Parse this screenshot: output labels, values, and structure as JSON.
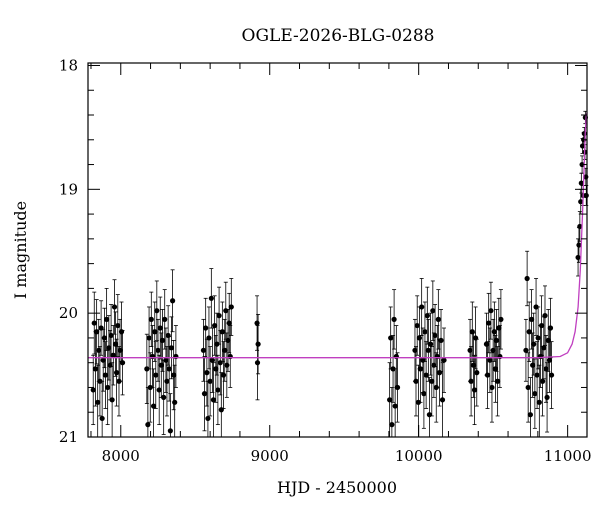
{
  "chart_data": {
    "type": "scatter",
    "title": "OGLE-2026-BLG-0288",
    "xlabel": "HJD - 2450000",
    "ylabel": "I magnitude",
    "xlim": [
      7780,
      11130
    ],
    "ylim": [
      21.0,
      17.98
    ],
    "y_inverted": true,
    "xticks": [
      8000,
      9000,
      10000,
      11000
    ],
    "yticks": [
      18,
      19,
      20,
      21
    ],
    "colors": {
      "data": "#000000",
      "model": "#c03fc0"
    },
    "model": {
      "name": "",
      "baseline_mag": 20.36,
      "x": [
        7780,
        9000,
        10000,
        10800,
        10950,
        11000,
        11030,
        11050,
        11070,
        11085,
        11100,
        11110,
        11118,
        11125,
        11130
      ],
      "y": [
        20.36,
        20.36,
        20.36,
        20.36,
        20.35,
        20.32,
        20.25,
        20.15,
        19.95,
        19.65,
        19.2,
        18.85,
        18.55,
        18.4,
        18.38
      ]
    },
    "series": [
      {
        "name": "",
        "points": [
          {
            "x": 7815,
            "y": 20.62,
            "err": 0.28
          },
          {
            "x": 7822,
            "y": 20.08,
            "err": 0.25
          },
          {
            "x": 7830,
            "y": 20.45,
            "err": 0.3
          },
          {
            "x": 7838,
            "y": 20.15,
            "err": 0.26
          },
          {
            "x": 7845,
            "y": 20.72,
            "err": 0.3
          },
          {
            "x": 7852,
            "y": 20.3,
            "err": 0.25
          },
          {
            "x": 7860,
            "y": 20.55,
            "err": 0.28
          },
          {
            "x": 7868,
            "y": 20.12,
            "err": 0.22
          },
          {
            "x": 7875,
            "y": 20.85,
            "err": 0.3
          },
          {
            "x": 7882,
            "y": 20.38,
            "err": 0.25
          },
          {
            "x": 7890,
            "y": 20.2,
            "err": 0.24
          },
          {
            "x": 7897,
            "y": 20.5,
            "err": 0.27
          },
          {
            "x": 7905,
            "y": 20.05,
            "err": 0.25
          },
          {
            "x": 7912,
            "y": 20.6,
            "err": 0.3
          },
          {
            "x": 7920,
            "y": 20.28,
            "err": 0.26
          },
          {
            "x": 7928,
            "y": 20.42,
            "err": 0.28
          },
          {
            "x": 7935,
            "y": 20.18,
            "err": 0.25
          },
          {
            "x": 7942,
            "y": 20.7,
            "err": 0.3
          },
          {
            "x": 7950,
            "y": 20.34,
            "err": 0.24
          },
          {
            "x": 7958,
            "y": 19.95,
            "err": 0.22
          },
          {
            "x": 7965,
            "y": 20.25,
            "err": 0.26
          },
          {
            "x": 7972,
            "y": 20.48,
            "err": 0.27
          },
          {
            "x": 7980,
            "y": 20.1,
            "err": 0.25
          },
          {
            "x": 7988,
            "y": 20.55,
            "err": 0.28
          },
          {
            "x": 7995,
            "y": 20.3,
            "err": 0.25
          },
          {
            "x": 8005,
            "y": 20.15,
            "err": 0.24
          },
          {
            "x": 8012,
            "y": 20.4,
            "err": 0.26
          },
          {
            "x": 8175,
            "y": 20.45,
            "err": 0.28
          },
          {
            "x": 8182,
            "y": 20.9,
            "err": 0.3
          },
          {
            "x": 8190,
            "y": 20.2,
            "err": 0.25
          },
          {
            "x": 8198,
            "y": 20.6,
            "err": 0.28
          },
          {
            "x": 8205,
            "y": 20.05,
            "err": 0.22
          },
          {
            "x": 8213,
            "y": 20.35,
            "err": 0.25
          },
          {
            "x": 8220,
            "y": 20.75,
            "err": 0.3
          },
          {
            "x": 8228,
            "y": 20.15,
            "err": 0.24
          },
          {
            "x": 8235,
            "y": 20.5,
            "err": 0.27
          },
          {
            "x": 8242,
            "y": 19.98,
            "err": 0.24
          },
          {
            "x": 8250,
            "y": 20.3,
            "err": 0.25
          },
          {
            "x": 8258,
            "y": 20.62,
            "err": 0.28
          },
          {
            "x": 8265,
            "y": 20.12,
            "err": 0.25
          },
          {
            "x": 8272,
            "y": 20.42,
            "err": 0.26
          },
          {
            "x": 8280,
            "y": 20.22,
            "err": 0.25
          },
          {
            "x": 8288,
            "y": 20.68,
            "err": 0.3
          },
          {
            "x": 8295,
            "y": 20.05,
            "err": 0.24
          },
          {
            "x": 8303,
            "y": 20.38,
            "err": 0.26
          },
          {
            "x": 8310,
            "y": 20.55,
            "err": 0.28
          },
          {
            "x": 8318,
            "y": 20.18,
            "err": 0.24
          },
          {
            "x": 8325,
            "y": 20.45,
            "err": 0.26
          },
          {
            "x": 8333,
            "y": 20.95,
            "err": 0.3
          },
          {
            "x": 8340,
            "y": 20.28,
            "err": 0.25
          },
          {
            "x": 8348,
            "y": 19.9,
            "err": 0.25
          },
          {
            "x": 8355,
            "y": 20.5,
            "err": 0.28
          },
          {
            "x": 8362,
            "y": 20.72,
            "err": 0.3
          },
          {
            "x": 8370,
            "y": 20.35,
            "err": 0.25
          },
          {
            "x": 8555,
            "y": 20.3,
            "err": 0.25
          },
          {
            "x": 8562,
            "y": 20.65,
            "err": 0.3
          },
          {
            "x": 8570,
            "y": 20.12,
            "err": 0.24
          },
          {
            "x": 8578,
            "y": 20.48,
            "err": 0.27
          },
          {
            "x": 8585,
            "y": 20.85,
            "err": 0.3
          },
          {
            "x": 8592,
            "y": 20.2,
            "err": 0.25
          },
          {
            "x": 8600,
            "y": 20.55,
            "err": 0.28
          },
          {
            "x": 8608,
            "y": 19.88,
            "err": 0.24
          },
          {
            "x": 8615,
            "y": 20.38,
            "err": 0.26
          },
          {
            "x": 8622,
            "y": 20.7,
            "err": 0.3
          },
          {
            "x": 8630,
            "y": 20.1,
            "err": 0.24
          },
          {
            "x": 8638,
            "y": 20.45,
            "err": 0.27
          },
          {
            "x": 8645,
            "y": 20.25,
            "err": 0.25
          },
          {
            "x": 8652,
            "y": 20.62,
            "err": 0.28
          },
          {
            "x": 8660,
            "y": 20.02,
            "err": 0.23
          },
          {
            "x": 8668,
            "y": 20.4,
            "err": 0.26
          },
          {
            "x": 8675,
            "y": 20.78,
            "err": 0.3
          },
          {
            "x": 8682,
            "y": 20.15,
            "err": 0.24
          },
          {
            "x": 8690,
            "y": 20.5,
            "err": 0.27
          },
          {
            "x": 8698,
            "y": 20.3,
            "err": 0.25
          },
          {
            "x": 8705,
            "y": 19.98,
            "err": 0.23
          },
          {
            "x": 8712,
            "y": 20.42,
            "err": 0.26
          },
          {
            "x": 8720,
            "y": 20.22,
            "err": 0.25
          },
          {
            "x": 8728,
            "y": 20.08,
            "err": 0.24
          },
          {
            "x": 8735,
            "y": 20.35,
            "err": 0.25
          },
          {
            "x": 8742,
            "y": 19.95,
            "err": 0.23
          },
          {
            "x": 8915,
            "y": 20.08,
            "err": 0.22
          },
          {
            "x": 8918,
            "y": 20.4,
            "err": 0.3
          },
          {
            "x": 8922,
            "y": 20.25,
            "err": 0.24
          },
          {
            "x": 9805,
            "y": 20.7,
            "err": 0.3
          },
          {
            "x": 9812,
            "y": 20.2,
            "err": 0.25
          },
          {
            "x": 9820,
            "y": 20.9,
            "err": 0.3
          },
          {
            "x": 9828,
            "y": 20.45,
            "err": 0.27
          },
          {
            "x": 9835,
            "y": 20.05,
            "err": 0.24
          },
          {
            "x": 9842,
            "y": 20.75,
            "err": 0.3
          },
          {
            "x": 9850,
            "y": 20.35,
            "err": 0.25
          },
          {
            "x": 9858,
            "y": 20.6,
            "err": 0.28
          },
          {
            "x": 9975,
            "y": 20.3,
            "err": 0.25
          },
          {
            "x": 9982,
            "y": 20.55,
            "err": 0.28
          },
          {
            "x": 9990,
            "y": 20.1,
            "err": 0.24
          },
          {
            "x": 9998,
            "y": 20.72,
            "err": 0.3
          },
          {
            "x": 10005,
            "y": 20.2,
            "err": 0.25
          },
          {
            "x": 10012,
            "y": 20.45,
            "err": 0.27
          },
          {
            "x": 10020,
            "y": 19.95,
            "err": 0.23
          },
          {
            "x": 10028,
            "y": 20.38,
            "err": 0.26
          },
          {
            "x": 10035,
            "y": 20.65,
            "err": 0.28
          },
          {
            "x": 10042,
            "y": 20.15,
            "err": 0.24
          },
          {
            "x": 10050,
            "y": 20.5,
            "err": 0.27
          },
          {
            "x": 10058,
            "y": 20.02,
            "err": 0.23
          },
          {
            "x": 10065,
            "y": 20.3,
            "err": 0.25
          },
          {
            "x": 10072,
            "y": 20.82,
            "err": 0.3
          },
          {
            "x": 10080,
            "y": 20.25,
            "err": 0.25
          },
          {
            "x": 10088,
            "y": 20.55,
            "err": 0.28
          },
          {
            "x": 10095,
            "y": 19.98,
            "err": 0.24
          },
          {
            "x": 10102,
            "y": 20.42,
            "err": 0.26
          },
          {
            "x": 10110,
            "y": 20.18,
            "err": 0.25
          },
          {
            "x": 10118,
            "y": 20.6,
            "err": 0.28
          },
          {
            "x": 10125,
            "y": 20.35,
            "err": 0.25
          },
          {
            "x": 10132,
            "y": 20.05,
            "err": 0.24
          },
          {
            "x": 10140,
            "y": 20.48,
            "err": 0.27
          },
          {
            "x": 10150,
            "y": 20.22,
            "err": 0.25
          },
          {
            "x": 10160,
            "y": 20.7,
            "err": 0.3
          },
          {
            "x": 10170,
            "y": 20.38,
            "err": 0.26
          },
          {
            "x": 10345,
            "y": 20.3,
            "err": 0.25
          },
          {
            "x": 10352,
            "y": 20.55,
            "err": 0.28
          },
          {
            "x": 10360,
            "y": 20.15,
            "err": 0.24
          },
          {
            "x": 10368,
            "y": 20.42,
            "err": 0.26
          },
          {
            "x": 10375,
            "y": 20.62,
            "err": 0.28
          },
          {
            "x": 10382,
            "y": 20.2,
            "err": 0.25
          },
          {
            "x": 10390,
            "y": 20.48,
            "err": 0.27
          },
          {
            "x": 10455,
            "y": 20.25,
            "err": 0.25
          },
          {
            "x": 10462,
            "y": 20.5,
            "err": 0.27
          },
          {
            "x": 10470,
            "y": 20.08,
            "err": 0.24
          },
          {
            "x": 10478,
            "y": 20.38,
            "err": 0.26
          },
          {
            "x": 10485,
            "y": 19.98,
            "err": 0.23
          },
          {
            "x": 10492,
            "y": 20.6,
            "err": 0.28
          },
          {
            "x": 10500,
            "y": 20.3,
            "err": 0.25
          },
          {
            "x": 10508,
            "y": 20.15,
            "err": 0.24
          },
          {
            "x": 10515,
            "y": 20.45,
            "err": 0.27
          },
          {
            "x": 10522,
            "y": 20.22,
            "err": 0.25
          },
          {
            "x": 10530,
            "y": 20.55,
            "err": 0.28
          },
          {
            "x": 10538,
            "y": 20.12,
            "err": 0.24
          },
          {
            "x": 10545,
            "y": 20.35,
            "err": 0.25
          },
          {
            "x": 10552,
            "y": 20.05,
            "err": 0.24
          },
          {
            "x": 10720,
            "y": 20.3,
            "err": 0.25
          },
          {
            "x": 10728,
            "y": 19.72,
            "err": 0.22
          },
          {
            "x": 10735,
            "y": 20.6,
            "err": 0.28
          },
          {
            "x": 10742,
            "y": 20.15,
            "err": 0.24
          },
          {
            "x": 10750,
            "y": 20.82,
            "err": 0.3
          },
          {
            "x": 10758,
            "y": 20.05,
            "err": 0.24
          },
          {
            "x": 10765,
            "y": 20.42,
            "err": 0.26
          },
          {
            "x": 10772,
            "y": 20.25,
            "err": 0.25
          },
          {
            "x": 10780,
            "y": 20.65,
            "err": 0.28
          },
          {
            "x": 10788,
            "y": 19.95,
            "err": 0.23
          },
          {
            "x": 10795,
            "y": 20.5,
            "err": 0.27
          },
          {
            "x": 10802,
            "y": 20.2,
            "err": 0.25
          },
          {
            "x": 10810,
            "y": 20.72,
            "err": 0.3
          },
          {
            "x": 10818,
            "y": 20.35,
            "err": 0.25
          },
          {
            "x": 10825,
            "y": 20.1,
            "err": 0.24
          },
          {
            "x": 10832,
            "y": 20.55,
            "err": 0.28
          },
          {
            "x": 10840,
            "y": 20.28,
            "err": 0.25
          },
          {
            "x": 10848,
            "y": 20.02,
            "err": 0.24
          },
          {
            "x": 10855,
            "y": 20.45,
            "err": 0.27
          },
          {
            "x": 10862,
            "y": 20.68,
            "err": 0.28
          },
          {
            "x": 10870,
            "y": 20.22,
            "err": 0.25
          },
          {
            "x": 10878,
            "y": 20.38,
            "err": 0.26
          },
          {
            "x": 10885,
            "y": 20.12,
            "err": 0.24
          },
          {
            "x": 10892,
            "y": 20.5,
            "err": 0.27
          },
          {
            "x": 11070,
            "y": 19.55,
            "err": 0.15
          },
          {
            "x": 11076,
            "y": 19.45,
            "err": 0.14
          },
          {
            "x": 11082,
            "y": 19.3,
            "err": 0.12
          },
          {
            "x": 11088,
            "y": 19.1,
            "err": 0.1
          },
          {
            "x": 11092,
            "y": 18.95,
            "err": 0.08
          },
          {
            "x": 11097,
            "y": 18.8,
            "err": 0.07
          },
          {
            "x": 11100,
            "y": 18.65,
            "err": 0.06
          },
          {
            "x": 11104,
            "y": 19.05,
            "err": 0.08
          },
          {
            "x": 11108,
            "y": 18.6,
            "err": 0.06
          },
          {
            "x": 11112,
            "y": 18.55,
            "err": 0.05
          },
          {
            "x": 11116,
            "y": 18.7,
            "err": 0.06
          },
          {
            "x": 11119,
            "y": 18.42,
            "err": 0.05
          },
          {
            "x": 11122,
            "y": 18.9,
            "err": 0.07
          },
          {
            "x": 11125,
            "y": 19.05,
            "err": 0.08
          }
        ]
      }
    ]
  }
}
